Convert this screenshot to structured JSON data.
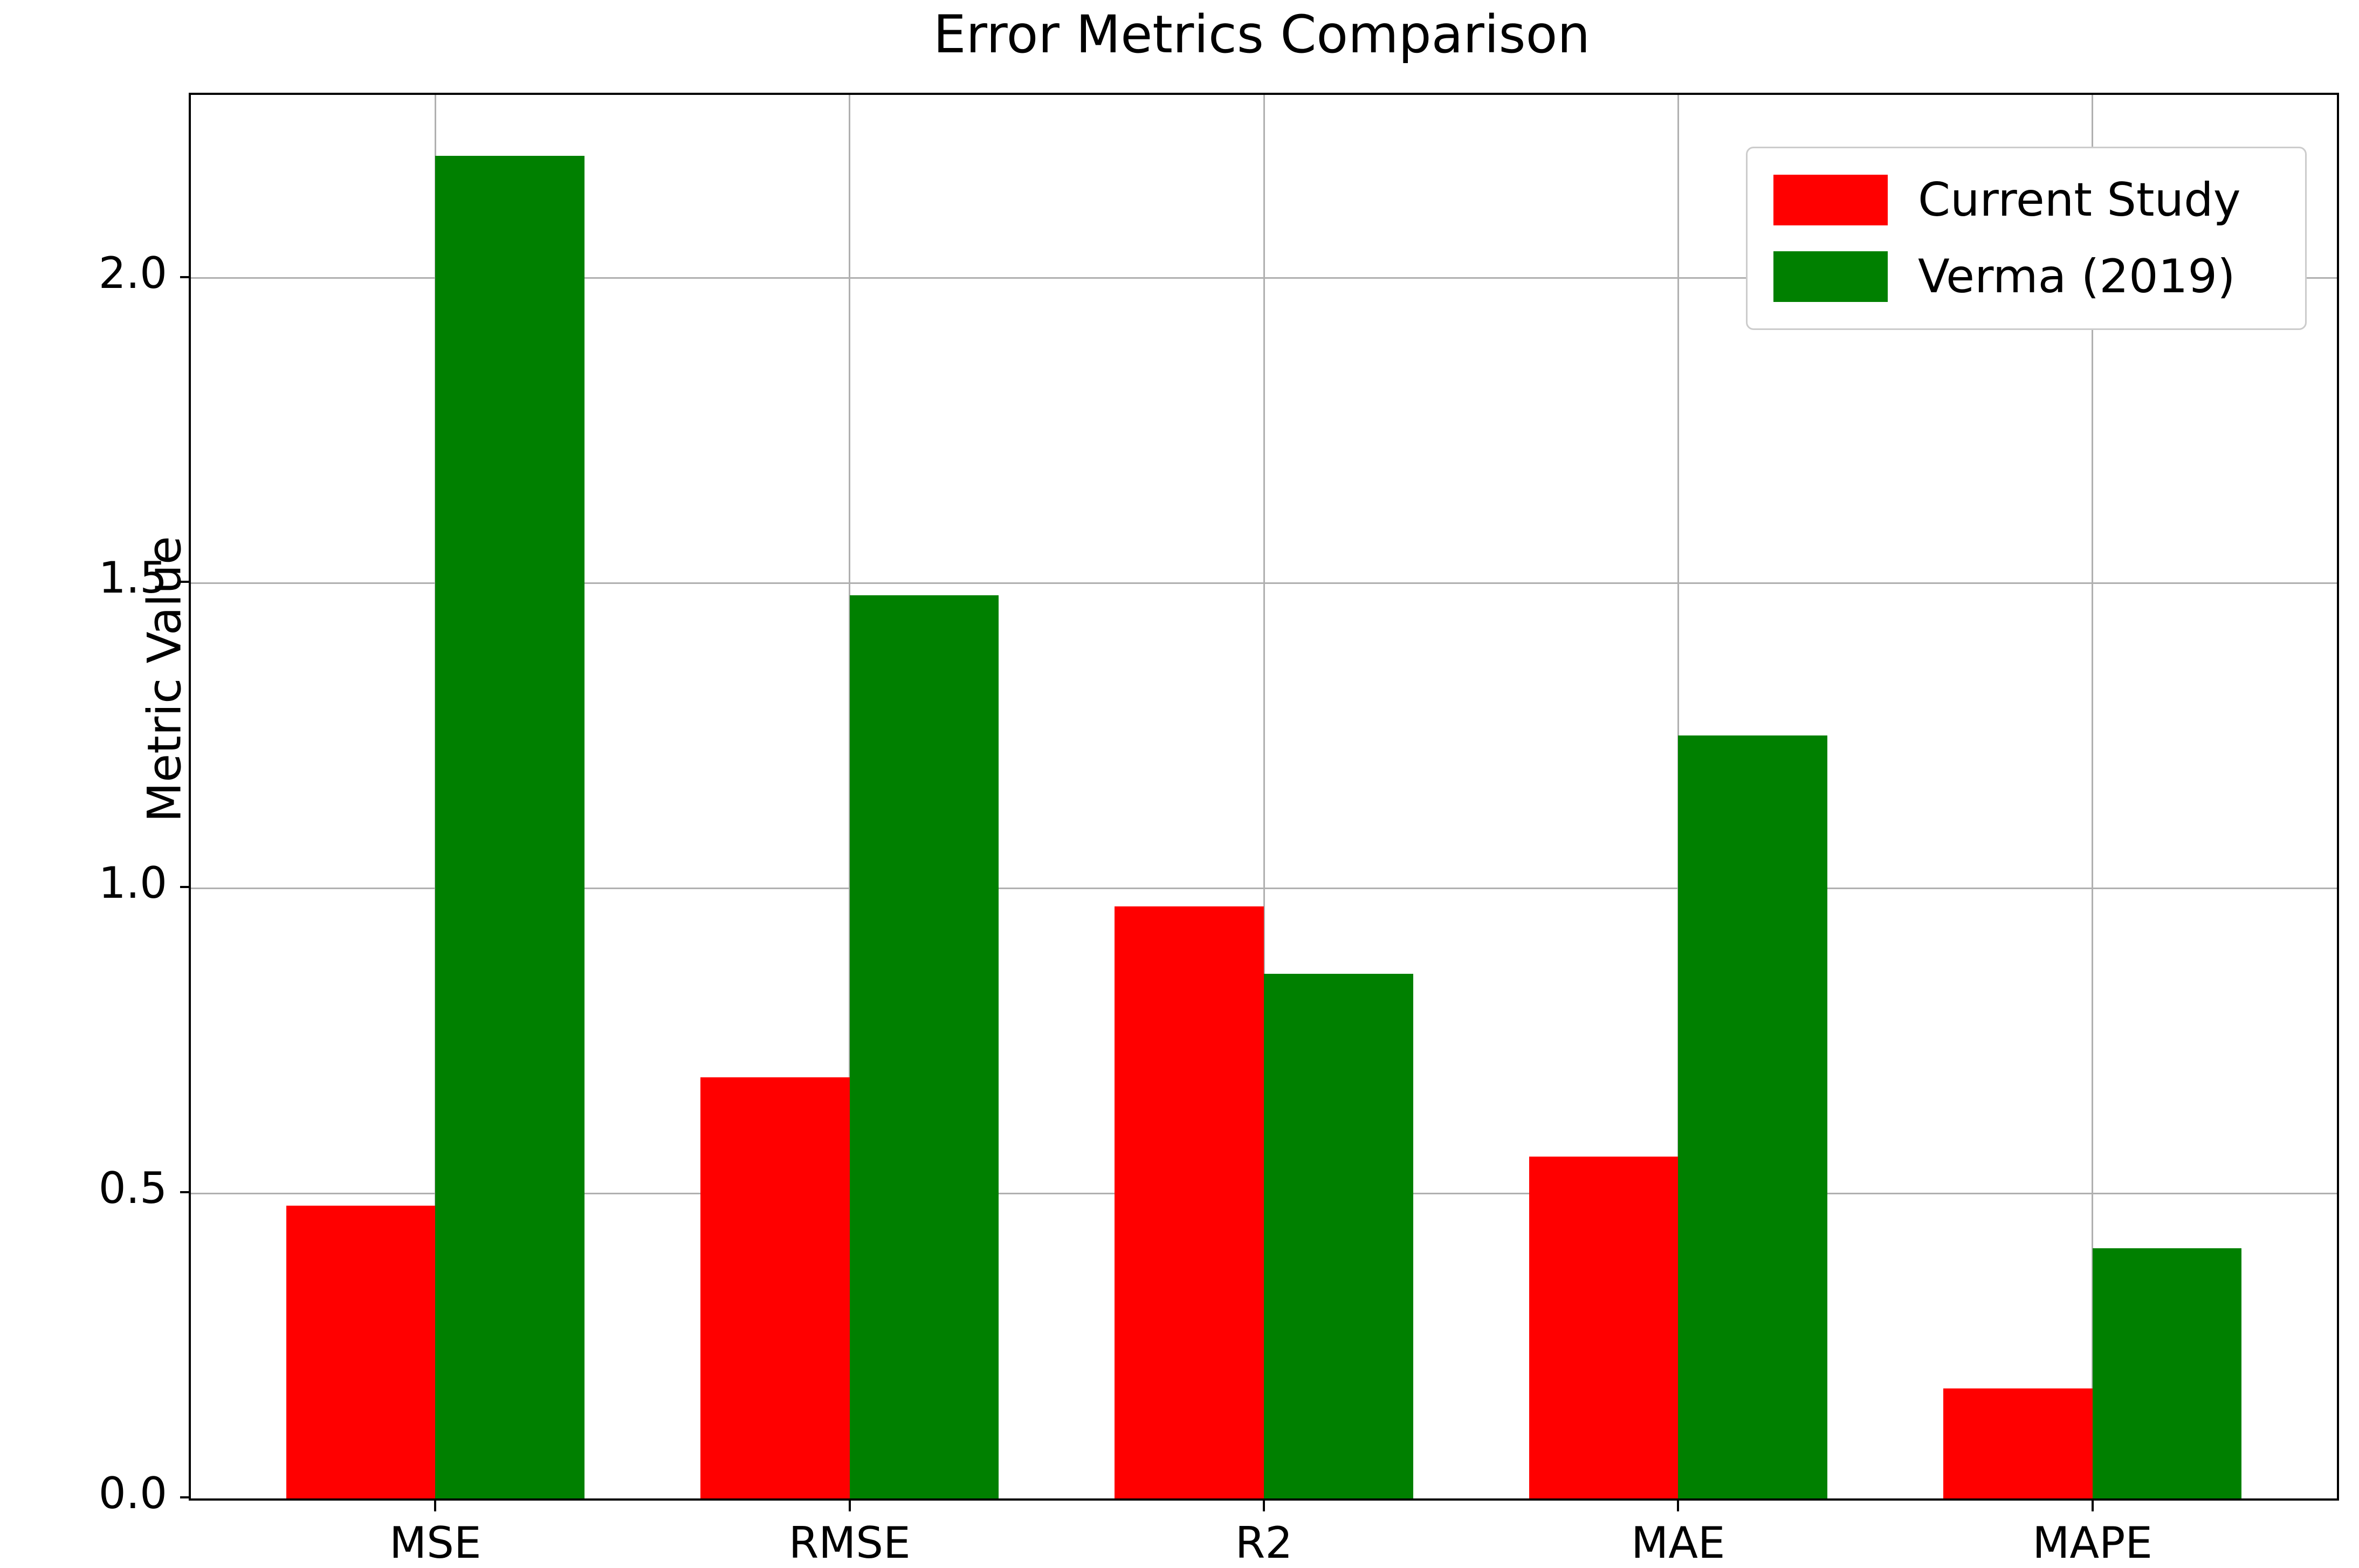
{
  "chart_data": {
    "type": "bar",
    "title": "Error Metrics Comparison",
    "xlabel": "",
    "ylabel": "Metric Value",
    "categories": [
      "MSE",
      "RMSE",
      "R2",
      "MAE",
      "MAPE"
    ],
    "series": [
      {
        "name": "Current Study",
        "color": "#ff0000",
        "values": [
          0.48,
          0.69,
          0.97,
          0.56,
          0.18
        ]
      },
      {
        "name": "Verma (2019)",
        "color": "#008000",
        "values": [
          2.2,
          1.48,
          0.86,
          1.25,
          0.41
        ]
      }
    ],
    "ylim": [
      0,
      2.3
    ],
    "yticks": [
      0.0,
      0.5,
      1.0,
      1.5,
      2.0
    ],
    "ytick_labels": [
      "0.0",
      "0.5",
      "1.0",
      "1.5",
      "2.0"
    ],
    "grid": true,
    "grid_color": "#b0b0b0",
    "legend_position": "upper right",
    "background_color": "#ffffff",
    "spine_color": "#000000"
  }
}
